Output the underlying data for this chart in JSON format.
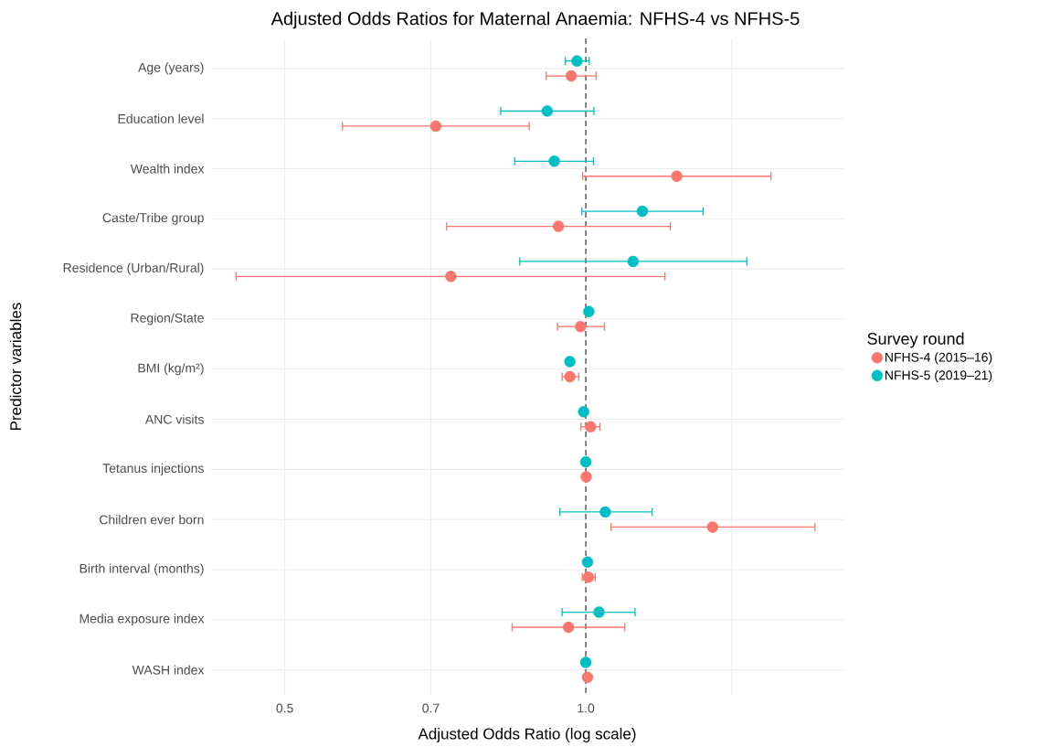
{
  "chart_data": {
    "type": "scatter",
    "orientation": "horizontal",
    "title": "Adjusted Odds Ratios for Maternal Anaemia: NFHS-4 vs NFHS-5",
    "xlabel": "Adjusted Odds Ratio (log scale)",
    "ylabel": "Predictor variables",
    "legend_title": "Survey round",
    "categories": [
      "Age (years)",
      "Education level",
      "Wealth index",
      "Caste/Tribe group",
      "Residence (Urban/Rural)",
      "Region/State",
      "BMI (kg/m²)",
      "ANC visits",
      "Tetanus injections",
      "Children ever born",
      "Birth interval (months)",
      "Media exposure index",
      "WASH index"
    ],
    "series": [
      {
        "name": "NFHS-4 (2015–16)",
        "color": "#f8766d",
        "values": [
          0.967,
          0.708,
          1.233,
          0.939,
          0.733,
          0.988,
          0.964,
          1.011,
          1.001,
          1.339,
          1.006,
          0.961,
          1.004
        ],
        "errors": [
          [
            0.913,
            1.024
          ],
          [
            0.571,
            0.878
          ],
          [
            0.993,
            1.532
          ],
          [
            0.726,
            1.215
          ],
          [
            0.447,
            1.2
          ],
          [
            0.937,
            1.044
          ],
          [
            0.947,
            0.984
          ],
          [
            0.989,
            1.033
          ],
          null,
          [
            1.06,
            1.695
          ],
          [
            0.992,
            1.022
          ],
          [
            0.844,
            1.094
          ],
          null
        ]
      },
      {
        "name": "NFHS-5 (2019–21)",
        "color": "#00bfc4",
        "values": [
          0.98,
          0.915,
          0.93,
          1.139,
          1.115,
          1.007,
          0.964,
          0.995,
          1.0,
          1.046,
          1.004,
          1.031,
          1.0
        ],
        "errors": [
          [
            0.954,
            1.008
          ],
          [
            0.822,
            1.019
          ],
          [
            0.849,
            1.018
          ],
          [
            0.991,
            1.31
          ],
          [
            0.859,
            1.449
          ],
          null,
          null,
          null,
          null,
          [
            0.942,
            1.165
          ],
          null,
          [
            0.947,
            1.12
          ],
          null
        ]
      }
    ],
    "xlim": [
      0.422,
      1.81
    ],
    "xticks": [
      0.5,
      0.7,
      {
        "value": 1.0,
        "label": "1.0"
      },
      {
        "value": 1.4,
        "label": null
      }
    ],
    "log": "x",
    "grid": true,
    "legend": "right",
    "ref_lines": [
      {
        "axis": "x",
        "value": 1,
        "line_style": "dashed",
        "color": "#555555"
      }
    ]
  }
}
